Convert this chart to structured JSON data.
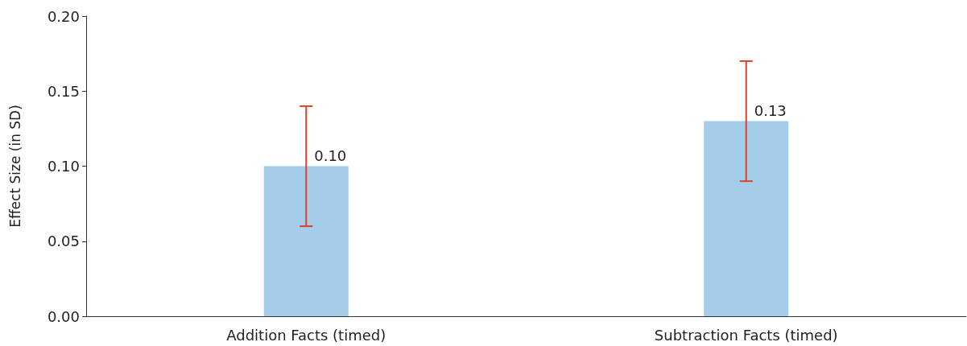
{
  "chart_data": {
    "type": "bar",
    "ylabel": "Effect Size (in SD)",
    "categories": [
      "Addition Facts (timed)",
      "Subtraction Facts (timed)"
    ],
    "values": [
      0.1,
      0.13
    ],
    "value_labels": [
      "0.10",
      "0.13"
    ],
    "color": "#a3cde8",
    "errors": [
      [
        0.06,
        0.14
      ],
      [
        0.09,
        0.17
      ]
    ],
    "ylim": [
      0,
      0.2
    ],
    "yticks": [
      {
        "value": 0,
        "label": "0.00"
      },
      {
        "value": 0.05,
        "label": "0.05"
      },
      {
        "value": 0.1,
        "label": "0.10"
      },
      {
        "value": 0.15,
        "label": "0.15"
      },
      {
        "value": 0.2,
        "label": "0.20"
      }
    ],
    "grid": false
  }
}
